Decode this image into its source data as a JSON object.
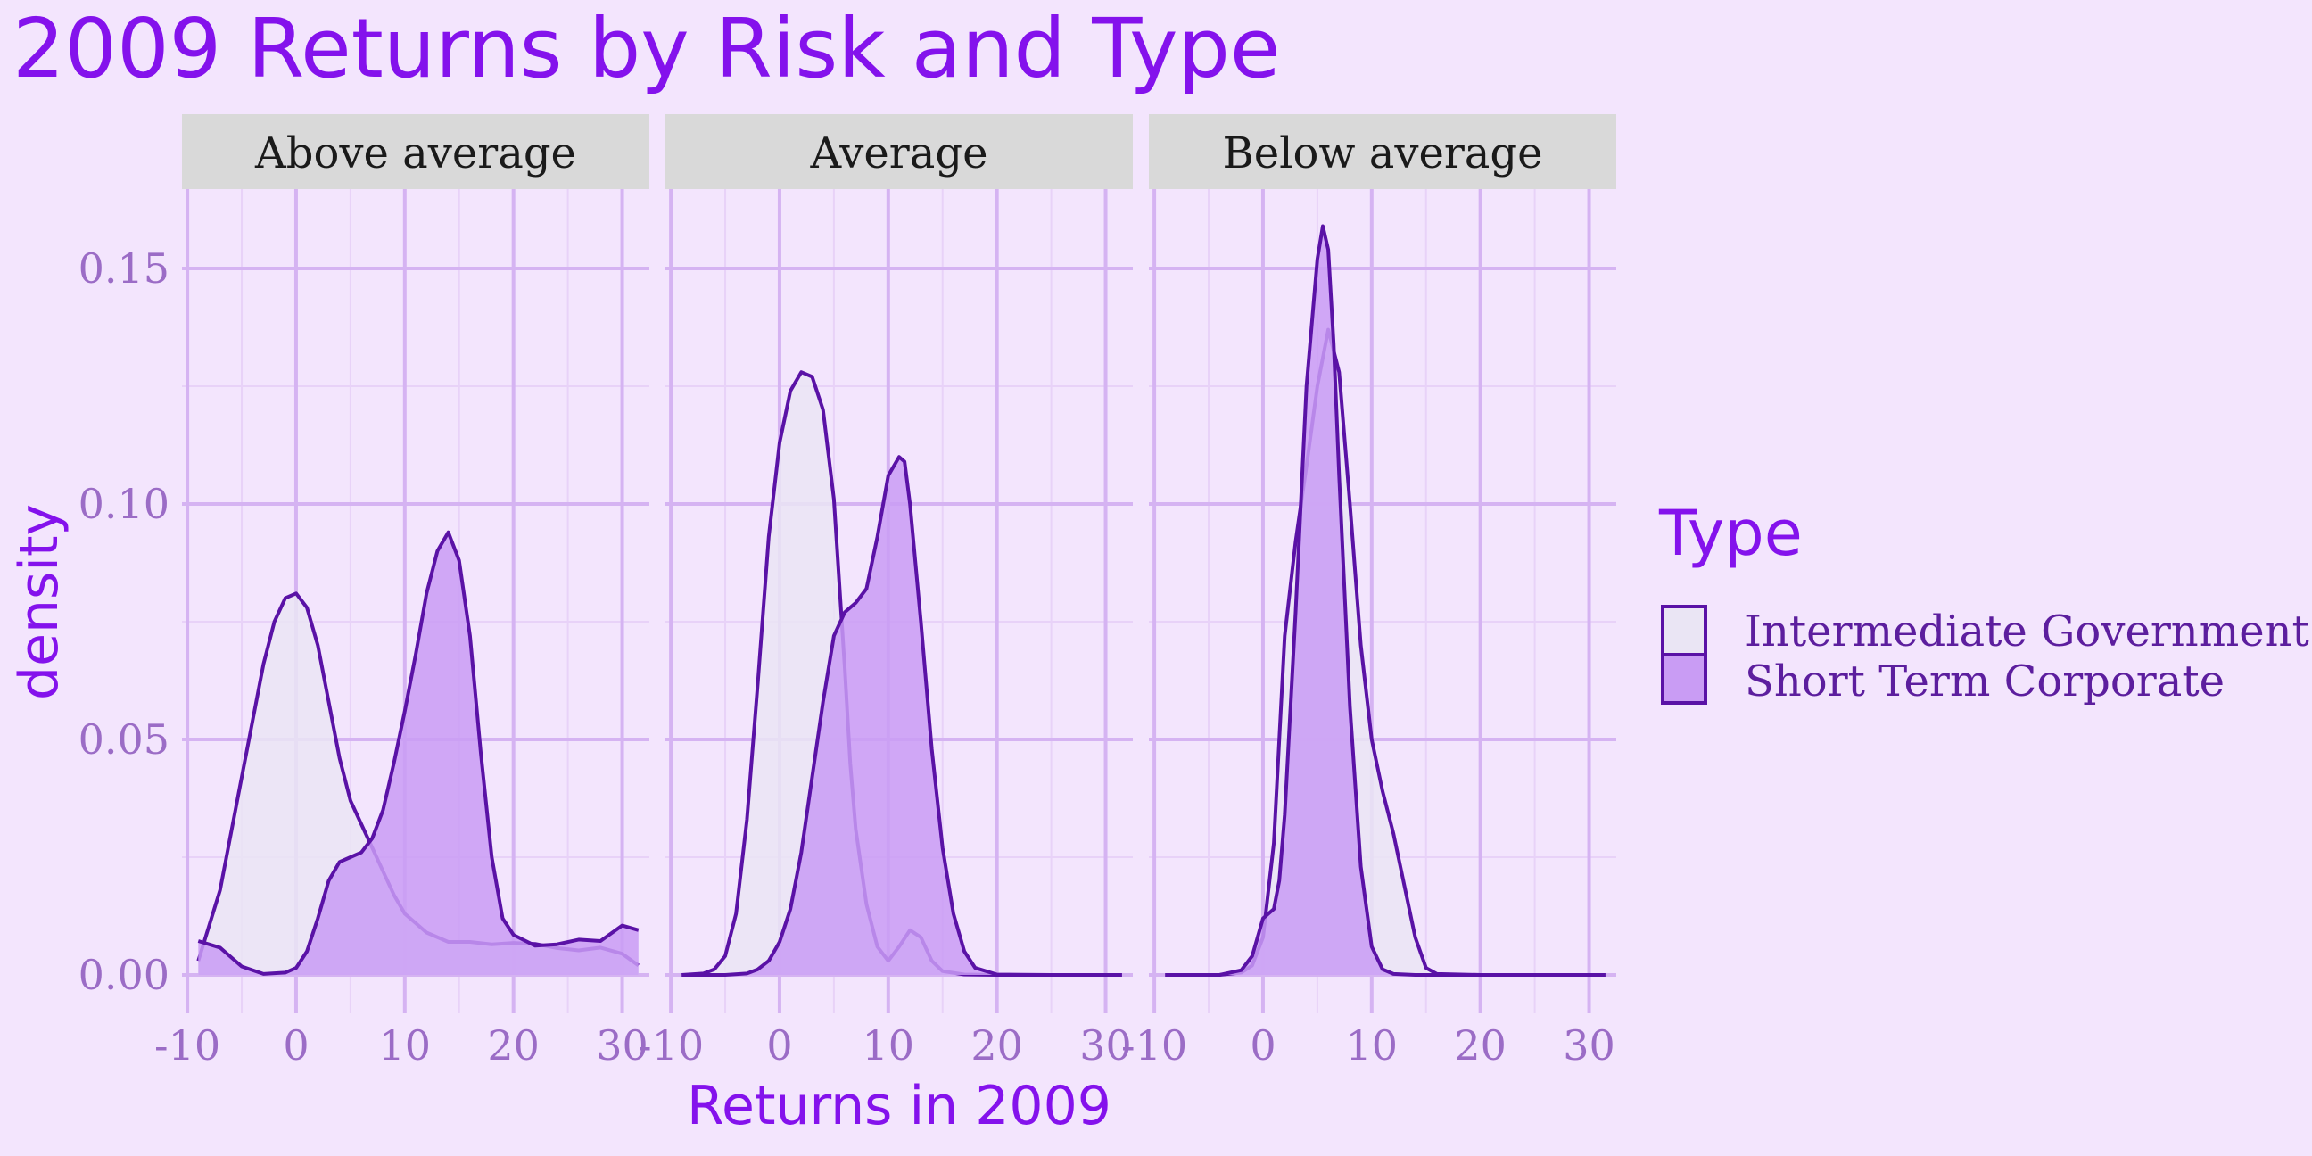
{
  "colors": {
    "background": "#f3e5fd",
    "title": "#8412ec",
    "grid_major": "#d5b3f2",
    "grid_minor": "#e8d2f8",
    "strip_bg": "#d9d9d9",
    "tick": "#9b6cc6",
    "line": "#5a12a6",
    "fill_intermediate": "#eae5f4",
    "fill_short": "#c99cf4"
  },
  "chart_data": {
    "type": "area",
    "chart_subtype": "faceted density plot",
    "title": "2009 Returns by Risk and Type",
    "xlabel": "Returns in 2009",
    "ylabel": "density",
    "xlim": [
      -10,
      32
    ],
    "ylim": [
      0,
      0.16
    ],
    "x_ticks": [
      "-10",
      "0",
      "10",
      "20",
      "30"
    ],
    "y_ticks": [
      "0.00",
      "0.05",
      "0.10",
      "0.15"
    ],
    "legend": {
      "title": "Type",
      "position": "right",
      "entries": [
        "Intermediate Government",
        "Short Term Corporate"
      ]
    },
    "grid": true,
    "facets": [
      {
        "label": "Above average",
        "series": [
          {
            "name": "Intermediate Government",
            "x": [
              -9,
              -7,
              -5,
              -3,
              -2,
              -1,
              0,
              1,
              2,
              3,
              4,
              5,
              6,
              7,
              8,
              9,
              10,
              11,
              12,
              14,
              16,
              18,
              20,
              22,
              24,
              26,
              28,
              30,
              31.5
            ],
            "y": [
              0.003,
              0.018,
              0.042,
              0.066,
              0.075,
              0.08,
              0.081,
              0.078,
              0.07,
              0.058,
              0.046,
              0.037,
              0.032,
              0.027,
              0.022,
              0.017,
              0.013,
              0.011,
              0.009,
              0.007,
              0.007,
              0.0065,
              0.0068,
              0.0066,
              0.0057,
              0.0052,
              0.0058,
              0.0045,
              0.002
            ]
          },
          {
            "name": "Short Term Corporate",
            "x": [
              -9,
              -7,
              -5,
              -3,
              -1,
              0,
              1,
              2,
              3,
              4,
              5,
              6,
              7,
              8,
              9,
              10,
              11,
              12,
              13,
              14,
              15,
              16,
              17,
              18,
              19,
              20,
              22,
              24,
              26,
              28,
              30,
              31.5
            ],
            "y": [
              0.0072,
              0.0058,
              0.0018,
              0.0002,
              0.0005,
              0.0015,
              0.005,
              0.012,
              0.02,
              0.024,
              0.025,
              0.026,
              0.029,
              0.035,
              0.045,
              0.056,
              0.068,
              0.081,
              0.09,
              0.094,
              0.088,
              0.072,
              0.047,
              0.025,
              0.012,
              0.0085,
              0.0062,
              0.0065,
              0.0075,
              0.0072,
              0.0105,
              0.0095
            ]
          }
        ]
      },
      {
        "label": "Average",
        "series": [
          {
            "name": "Intermediate Government",
            "x": [
              -9,
              -7,
              -6,
              -5,
              -4,
              -3,
              -2,
              -1,
              0,
              1,
              2,
              3,
              4,
              5,
              6,
              6.5,
              7,
              8,
              9,
              10,
              11,
              12,
              13,
              14,
              15,
              17,
              20,
              25,
              31.5
            ],
            "y": [
              0,
              0.0003,
              0.0012,
              0.004,
              0.013,
              0.033,
              0.062,
              0.093,
              0.113,
              0.124,
              0.128,
              0.127,
              0.12,
              0.101,
              0.065,
              0.045,
              0.031,
              0.015,
              0.006,
              0.003,
              0.006,
              0.0095,
              0.008,
              0.003,
              0.0008,
              0.0001,
              0,
              0,
              0
            ]
          },
          {
            "name": "Short Term Corporate",
            "x": [
              -9,
              -5,
              -3,
              -2,
              -1,
              0,
              1,
              2,
              3,
              4,
              5,
              6,
              7,
              8,
              9,
              10,
              11,
              11.5,
              12,
              13,
              14,
              15,
              16,
              17,
              18,
              20,
              25,
              31.5
            ],
            "y": [
              0,
              0,
              0.0003,
              0.0012,
              0.003,
              0.007,
              0.014,
              0.026,
              0.042,
              0.058,
              0.072,
              0.077,
              0.079,
              0.082,
              0.093,
              0.106,
              0.11,
              0.109,
              0.1,
              0.075,
              0.048,
              0.027,
              0.013,
              0.005,
              0.0015,
              0.0001,
              0,
              0
            ]
          }
        ]
      },
      {
        "label": "Below average",
        "series": [
          {
            "name": "Intermediate Government",
            "x": [
              -9,
              -4,
              -2,
              -1,
              0,
              1,
              2,
              3,
              4,
              5,
              6,
              7,
              8,
              9,
              10,
              11,
              12,
              13,
              14,
              15,
              16,
              20,
              31.5
            ],
            "y": [
              0,
              0,
              0.0005,
              0.002,
              0.008,
              0.028,
              0.072,
              0.092,
              0.108,
              0.125,
              0.137,
              0.128,
              0.1,
              0.07,
              0.05,
              0.039,
              0.03,
              0.019,
              0.008,
              0.0015,
              0.0002,
              0,
              0
            ]
          },
          {
            "name": "Short Term Corporate",
            "x": [
              -9,
              -4,
              -2,
              -1,
              0,
              0.5,
              1,
              1.5,
              2,
              3,
              4,
              5,
              5.5,
              6,
              6.5,
              7,
              8,
              9,
              10,
              11,
              12,
              14,
              20,
              31.5
            ],
            "y": [
              0,
              0,
              0.001,
              0.004,
              0.012,
              0.013,
              0.014,
              0.02,
              0.034,
              0.077,
              0.125,
              0.152,
              0.159,
              0.154,
              0.134,
              0.106,
              0.057,
              0.023,
              0.006,
              0.0012,
              0.0002,
              0,
              0,
              0
            ]
          }
        ]
      }
    ]
  }
}
